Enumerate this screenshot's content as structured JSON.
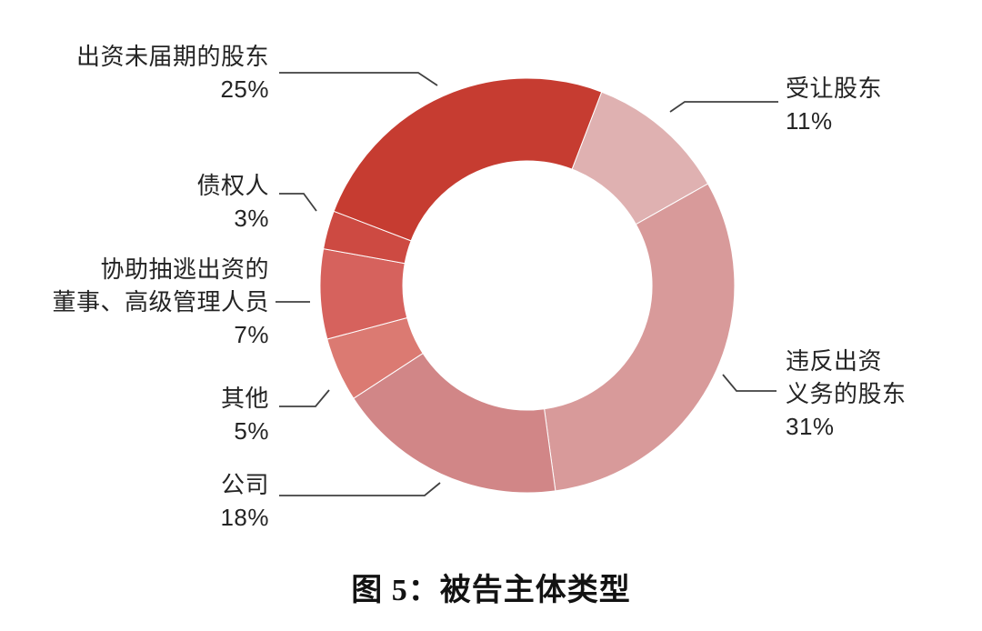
{
  "figure": {
    "title": "图 5：被告主体类型"
  },
  "chart_data": {
    "type": "pie",
    "subtype": "donut",
    "title": "图 5：被告主体类型",
    "unit": "%",
    "direction": "clockwise",
    "start_angle_deg": 21,
    "inner_radius_ratio": 0.6,
    "legend_position": "callout-labels",
    "background": "#ffffff",
    "segments": [
      {
        "label": "受让股东",
        "value": 11,
        "pct_label": "11%",
        "color": "#DFB1B1"
      },
      {
        "label": "违反出资义务的股东",
        "value": 31,
        "pct_label": "31%",
        "color": "#D89A9A"
      },
      {
        "label": "公司",
        "value": 18,
        "pct_label": "18%",
        "color": "#D18687"
      },
      {
        "label": "其他",
        "value": 5,
        "pct_label": "5%",
        "color": "#DB7A72"
      },
      {
        "label": "协助抽逃出资的董事、高级管理人员",
        "value": 7,
        "pct_label": "7%",
        "color": "#D6625D"
      },
      {
        "label": "债权人",
        "value": 3,
        "pct_label": "3%",
        "color": "#CD4A42"
      },
      {
        "label": "出资未届期的股东",
        "value": 25,
        "pct_label": "25%",
        "color": "#C63C31"
      }
    ]
  },
  "callouts": {
    "unmatured": {
      "lines": [
        "出资未届期的股东",
        "25%"
      ]
    },
    "transferee": {
      "lines": [
        "受让股东",
        "11%"
      ]
    },
    "violating": {
      "lines": [
        "违反出资",
        "义务的股东",
        "31%"
      ]
    },
    "creditor": {
      "lines": [
        "债权人",
        "3%"
      ]
    },
    "assisting": {
      "lines": [
        "协助抽逃出资的",
        "董事、高级管理人员",
        "7%"
      ]
    },
    "other": {
      "lines": [
        "其他",
        "5%"
      ]
    },
    "company": {
      "lines": [
        "公司",
        "18%"
      ]
    }
  }
}
